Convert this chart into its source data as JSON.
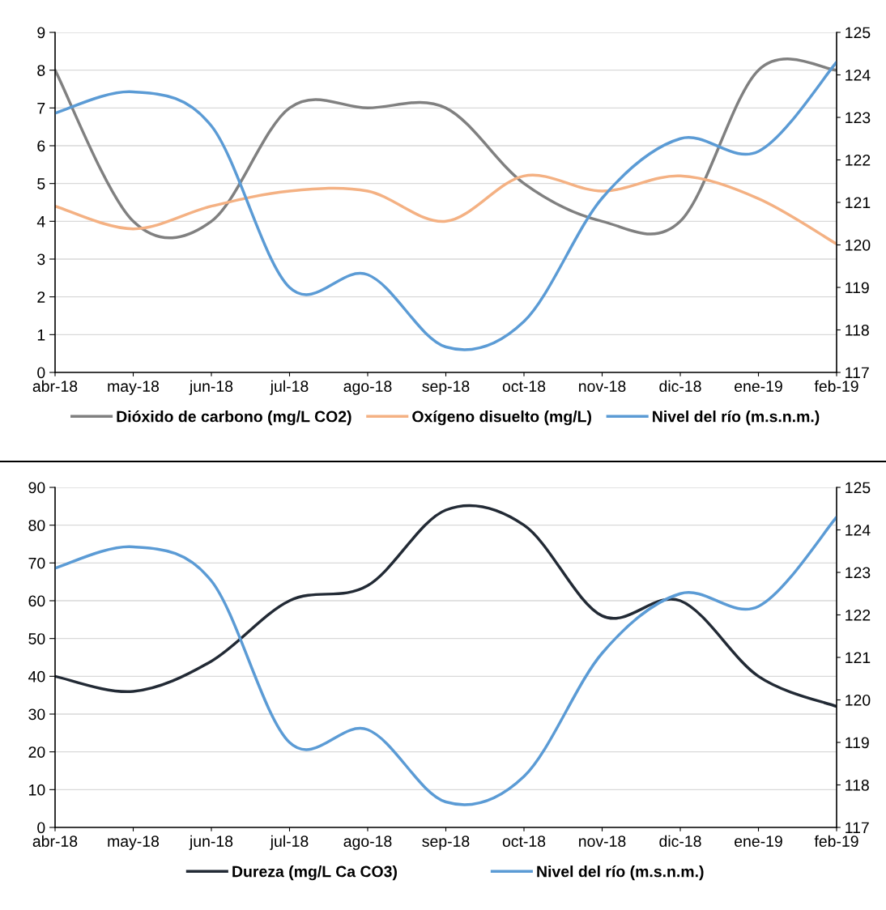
{
  "chart_data": [
    {
      "type": "line",
      "categories": [
        "abr-18",
        "may-18",
        "jun-18",
        "jul-18",
        "ago-18",
        "sep-18",
        "oct-18",
        "nov-18",
        "dic-18",
        "ene-19",
        "feb-19"
      ],
      "series": [
        {
          "name": "Dióxido de carbono (mg/L CO2)",
          "color": "#808080",
          "values": [
            8,
            4,
            4,
            7,
            7,
            7,
            5,
            4,
            4,
            8,
            8
          ]
        },
        {
          "name": "Oxígeno disuelto (mg/L)",
          "color": "#f4b183",
          "values": [
            4.4,
            3.8,
            4.4,
            4.8,
            4.8,
            4.0,
            5.2,
            4.8,
            5.2,
            4.6,
            3.4
          ]
        },
        {
          "name": "Nivel del río (m.s.n.m.)",
          "color": "#5b9bd5",
          "axis": "y2",
          "values": [
            123.1,
            123.6,
            122.8,
            119.0,
            119.3,
            117.6,
            118.2,
            121.1,
            122.5,
            122.2,
            124.3
          ]
        }
      ],
      "ylim": [
        0,
        9
      ],
      "yticks": [
        0,
        1,
        2,
        3,
        4,
        5,
        6,
        7,
        8,
        9
      ],
      "y2lim": [
        117,
        125
      ],
      "y2ticks": [
        117,
        118,
        119,
        120,
        121,
        122,
        123,
        124,
        125
      ],
      "grid": "y",
      "legend": "bottom",
      "marker": "none",
      "line_style": "solid"
    },
    {
      "type": "line",
      "categories": [
        "abr-18",
        "may-18",
        "jun-18",
        "jul-18",
        "ago-18",
        "sep-18",
        "oct-18",
        "nov-18",
        "dic-18",
        "ene-19",
        "feb-19"
      ],
      "series": [
        {
          "name": "Dureza (mg/L Ca CO3)",
          "color": "#222a35",
          "values": [
            40,
            36,
            44,
            60,
            64,
            84,
            80,
            56,
            60,
            40,
            32
          ]
        },
        {
          "name": "Nivel del río (m.s.n.m.)",
          "color": "#5b9bd5",
          "axis": "y2",
          "values": [
            123.1,
            123.6,
            122.8,
            119.0,
            119.3,
            117.6,
            118.2,
            121.1,
            122.5,
            122.2,
            124.3
          ]
        }
      ],
      "ylim": [
        0,
        90
      ],
      "yticks": [
        0,
        10,
        20,
        30,
        40,
        50,
        60,
        70,
        80,
        90
      ],
      "y2lim": [
        117,
        125
      ],
      "y2ticks": [
        117,
        118,
        119,
        120,
        121,
        122,
        123,
        124,
        125
      ],
      "grid": "y",
      "legend": "bottom",
      "marker": "none",
      "line_style": "solid"
    }
  ]
}
